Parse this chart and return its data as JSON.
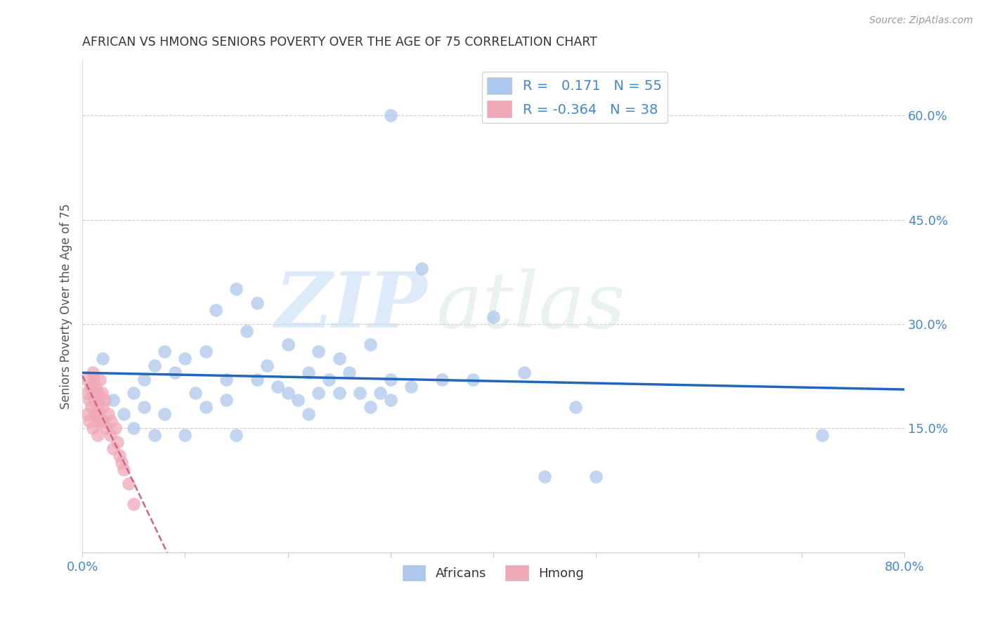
{
  "title": "AFRICAN VS HMONG SENIORS POVERTY OVER THE AGE OF 75 CORRELATION CHART",
  "source": "Source: ZipAtlas.com",
  "ylabel": "Seniors Poverty Over the Age of 75",
  "xlabel": "",
  "watermark_zip": "ZIP",
  "watermark_atlas": "atlas",
  "xlim": [
    0.0,
    0.8
  ],
  "ylim": [
    -0.03,
    0.68
  ],
  "xticks": [
    0.0,
    0.1,
    0.2,
    0.3,
    0.4,
    0.5,
    0.6,
    0.7,
    0.8
  ],
  "xticklabels": [
    "0.0%",
    "",
    "",
    "",
    "",
    "",
    "",
    "",
    "80.0%"
  ],
  "ytick_positions": [
    0.15,
    0.3,
    0.45,
    0.6
  ],
  "ytick_labels": [
    "15.0%",
    "30.0%",
    "45.0%",
    "60.0%"
  ],
  "legend_r_african": "0.171",
  "legend_n_african": "55",
  "legend_r_hmong": "-0.364",
  "legend_n_hmong": "38",
  "african_color": "#adc8ed",
  "hmong_color": "#f0a8b8",
  "african_line_color": "#2266bb",
  "hmong_line_color": "#cc6688",
  "grid_color": "#cccccc",
  "title_color": "#333333",
  "axis_label_color": "#555555",
  "tick_label_color": "#4488cc",
  "africans_x": [
    0.02,
    0.03,
    0.04,
    0.05,
    0.05,
    0.06,
    0.06,
    0.07,
    0.07,
    0.08,
    0.08,
    0.09,
    0.1,
    0.1,
    0.11,
    0.12,
    0.12,
    0.13,
    0.14,
    0.14,
    0.15,
    0.15,
    0.16,
    0.17,
    0.17,
    0.18,
    0.19,
    0.2,
    0.2,
    0.21,
    0.22,
    0.22,
    0.23,
    0.23,
    0.24,
    0.25,
    0.25,
    0.26,
    0.27,
    0.28,
    0.28,
    0.29,
    0.3,
    0.3,
    0.32,
    0.33,
    0.35,
    0.38,
    0.4,
    0.43,
    0.45,
    0.48,
    0.5,
    0.72,
    0.3
  ],
  "africans_y": [
    0.25,
    0.19,
    0.17,
    0.2,
    0.15,
    0.22,
    0.18,
    0.24,
    0.14,
    0.26,
    0.17,
    0.23,
    0.25,
    0.14,
    0.2,
    0.26,
    0.18,
    0.32,
    0.19,
    0.22,
    0.35,
    0.14,
    0.29,
    0.22,
    0.33,
    0.24,
    0.21,
    0.27,
    0.2,
    0.19,
    0.23,
    0.17,
    0.26,
    0.2,
    0.22,
    0.25,
    0.2,
    0.23,
    0.2,
    0.27,
    0.18,
    0.2,
    0.22,
    0.19,
    0.21,
    0.38,
    0.22,
    0.22,
    0.31,
    0.23,
    0.08,
    0.18,
    0.08,
    0.14,
    0.6
  ],
  "hmong_x": [
    0.005,
    0.005,
    0.005,
    0.007,
    0.007,
    0.008,
    0.009,
    0.01,
    0.01,
    0.01,
    0.011,
    0.012,
    0.013,
    0.013,
    0.014,
    0.014,
    0.015,
    0.015,
    0.016,
    0.016,
    0.017,
    0.018,
    0.019,
    0.02,
    0.021,
    0.022,
    0.023,
    0.025,
    0.027,
    0.028,
    0.03,
    0.032,
    0.034,
    0.036,
    0.038,
    0.04,
    0.045,
    0.05
  ],
  "hmong_y": [
    0.2,
    0.17,
    0.22,
    0.19,
    0.16,
    0.21,
    0.18,
    0.23,
    0.2,
    0.15,
    0.22,
    0.19,
    0.17,
    0.21,
    0.18,
    0.16,
    0.2,
    0.14,
    0.19,
    0.17,
    0.22,
    0.16,
    0.2,
    0.18,
    0.16,
    0.19,
    0.15,
    0.17,
    0.14,
    0.16,
    0.12,
    0.15,
    0.13,
    0.11,
    0.1,
    0.09,
    0.07,
    0.04
  ]
}
